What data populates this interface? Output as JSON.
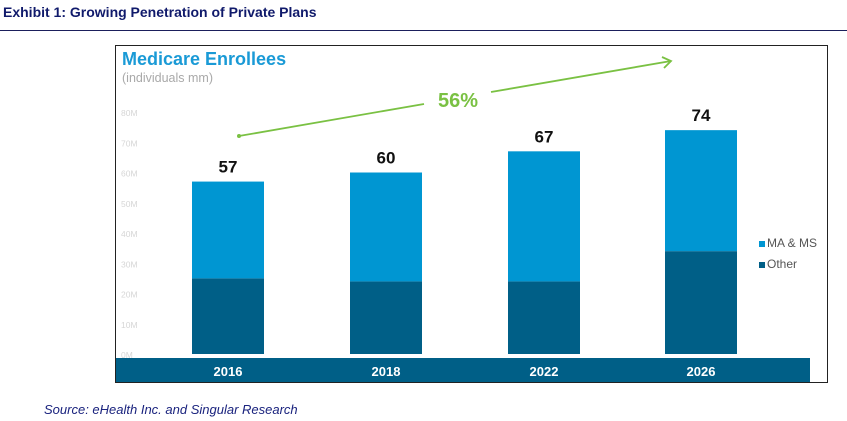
{
  "exhibit": {
    "title": "Exhibit 1:  Growing Penetration of Private Plans"
  },
  "source": "Source: eHealth Inc. and Singular Research",
  "chart_data": {
    "type": "bar",
    "stacked": true,
    "title": "Medicare Enrollees",
    "subtitle": "(individuals mm)",
    "xlabel": "",
    "ylabel": "",
    "categories": [
      "2016",
      "2018",
      "2022",
      "2026"
    ],
    "series": [
      {
        "name": "Other",
        "color": "#005f87",
        "values": [
          25,
          24,
          24,
          34
        ]
      },
      {
        "name": "MA & MS",
        "color": "#0096d2",
        "values": [
          32,
          36,
          43,
          40
        ]
      }
    ],
    "totals": [
      57,
      60,
      67,
      74
    ],
    "total_labels": [
      "57",
      "60",
      "67",
      "74"
    ],
    "ylim": [
      0,
      80
    ],
    "yticks": [
      0,
      10,
      20,
      30,
      40,
      50,
      60,
      70,
      80
    ],
    "ytick_labels": [
      "0M",
      "10M",
      "20M",
      "30M",
      "40M",
      "50M",
      "60M",
      "70M",
      "80M"
    ],
    "grid": false,
    "legend": {
      "position": "right",
      "entries": [
        {
          "label": "MA & MS",
          "color": "#0096d2"
        },
        {
          "label": "Other",
          "color": "#005f87"
        }
      ]
    },
    "annotation": {
      "text": "56%",
      "color": "#7ac143",
      "description": "growth arrow from 2016 to 2026"
    },
    "category_band_color": "#005f87"
  }
}
